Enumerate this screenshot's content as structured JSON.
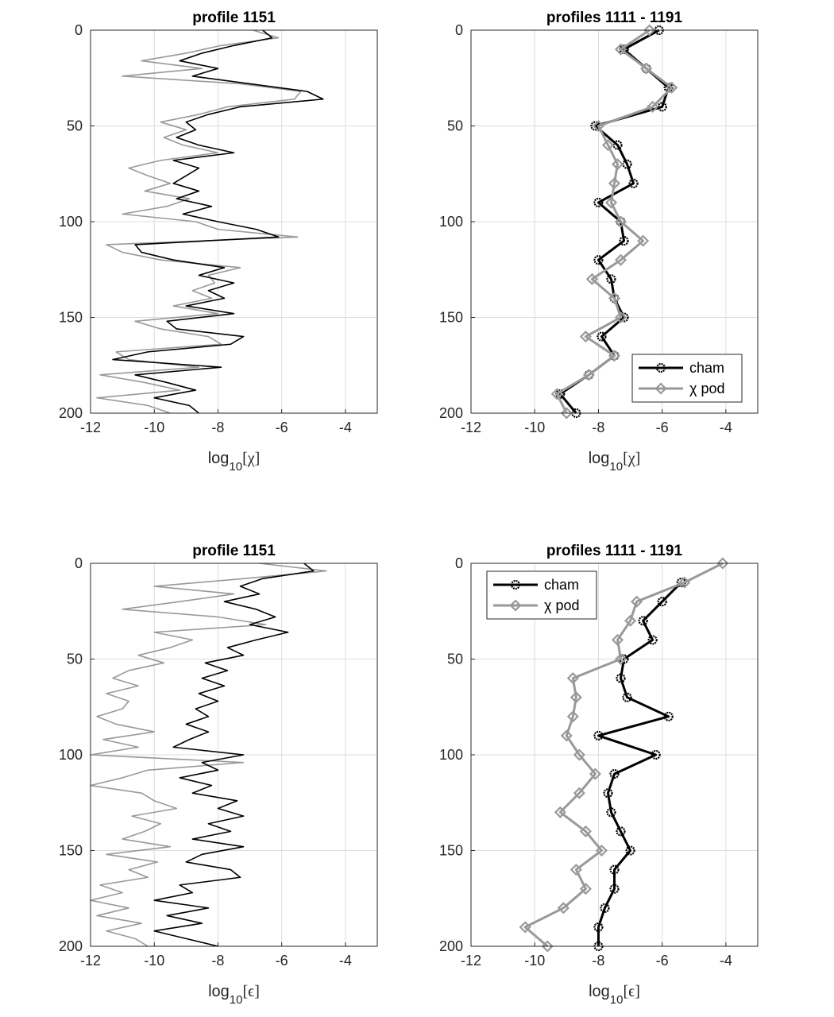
{
  "chart_data": [
    {
      "type": "line",
      "title": "profile 1151",
      "xlabel": [
        "log",
        "10",
        "[χ]"
      ],
      "y": [
        0,
        4,
        8,
        12,
        16,
        20,
        24,
        28,
        32,
        36,
        40,
        44,
        48,
        52,
        56,
        60,
        64,
        68,
        72,
        76,
        80,
        84,
        88,
        92,
        96,
        100,
        104,
        108,
        112,
        116,
        120,
        124,
        128,
        132,
        136,
        140,
        144,
        148,
        152,
        156,
        160,
        164,
        168,
        172,
        176,
        180,
        184,
        188,
        192,
        196,
        200
      ],
      "series": [
        {
          "color": "#999999",
          "values": [
            -6.9,
            -6.1,
            -7.9,
            -9.0,
            -10.4,
            -8.5,
            -11.0,
            -7.3,
            -5.4,
            -5.6,
            -7.7,
            -8.6,
            -9.8,
            -9.0,
            -9.7,
            -9.1,
            -8.0,
            -9.8,
            -10.8,
            -10.2,
            -9.5,
            -10.3,
            -8.9,
            -9.6,
            -11.0,
            -8.7,
            -8.0,
            -5.5,
            -11.5,
            -11.0,
            -9.8,
            -7.3,
            -8.3,
            -8.1,
            -8.8,
            -8.2,
            -9.4,
            -8.0,
            -10.6,
            -9.8,
            -8.3,
            -7.9,
            -11.2,
            -10.8,
            -8.6,
            -11.7,
            -10.3,
            -9.2,
            -11.8,
            -10.2,
            -9.5
          ]
        },
        {
          "color": "#000000",
          "values": [
            -6.6,
            -6.3,
            -7.5,
            -8.5,
            -9.2,
            -8.0,
            -8.8,
            -7.0,
            -5.2,
            -4.7,
            -7.3,
            -8.3,
            -9.0,
            -8.7,
            -9.3,
            -8.6,
            -7.5,
            -9.4,
            -8.6,
            -9.0,
            -9.4,
            -8.6,
            -9.3,
            -8.2,
            -9.1,
            -8.0,
            -6.8,
            -6.1,
            -10.6,
            -10.4,
            -9.4,
            -7.8,
            -8.6,
            -7.5,
            -8.3,
            -7.8,
            -9.0,
            -7.5,
            -9.6,
            -9.3,
            -7.2,
            -7.6,
            -10.2,
            -11.3,
            -7.9,
            -10.6,
            -9.6,
            -8.7,
            -10.0,
            -8.9,
            -8.6
          ]
        }
      ],
      "xlim": [
        -12,
        -3
      ],
      "xticks": [
        -12,
        -10,
        -8,
        -6,
        -4
      ],
      "ylim": [
        0,
        200
      ],
      "yticks": [
        0,
        50,
        100,
        150,
        200
      ],
      "y_reversed": true,
      "grid": true
    },
    {
      "type": "line",
      "title": "profiles 1111 - 1191",
      "xlabel": [
        "log",
        "10",
        "[χ]"
      ],
      "y": [
        0,
        10,
        20,
        30,
        40,
        50,
        60,
        70,
        80,
        90,
        100,
        110,
        120,
        130,
        140,
        150,
        160,
        170,
        180,
        190,
        200
      ],
      "series": [
        {
          "name": "cham",
          "color": "#000000",
          "marker": "circle",
          "values": [
            -6.1,
            -7.2,
            -6.5,
            -5.8,
            -6.0,
            -8.1,
            -7.4,
            -7.1,
            -6.9,
            -8.0,
            -7.3,
            -7.2,
            -8.0,
            -7.6,
            -7.5,
            -7.2,
            -7.9,
            -7.5,
            -8.3,
            -9.2,
            -8.7
          ]
        },
        {
          "name": "χ pod",
          "color": "#999999",
          "marker": "diamond",
          "values": [
            -6.4,
            -7.3,
            -6.5,
            -5.7,
            -6.3,
            -8.0,
            -7.7,
            -7.4,
            -7.5,
            -7.6,
            -7.3,
            -6.6,
            -7.3,
            -8.2,
            -7.5,
            -7.3,
            -8.4,
            -7.5,
            -8.3,
            -9.3,
            -9.0
          ]
        }
      ],
      "legend": "lower-right",
      "xlim": [
        -12,
        -3
      ],
      "xticks": [
        -12,
        -10,
        -8,
        -6,
        -4
      ],
      "ylim": [
        0,
        200
      ],
      "yticks": [
        0,
        50,
        100,
        150,
        200
      ],
      "y_reversed": true,
      "grid": true
    },
    {
      "type": "line",
      "title": "profile 1151",
      "xlabel": [
        "log",
        "10",
        "[ϵ]"
      ],
      "y": [
        0,
        4,
        8,
        12,
        16,
        20,
        24,
        28,
        32,
        36,
        40,
        44,
        48,
        52,
        56,
        60,
        64,
        68,
        72,
        76,
        80,
        84,
        88,
        92,
        96,
        100,
        104,
        108,
        112,
        116,
        120,
        124,
        128,
        132,
        136,
        140,
        144,
        148,
        152,
        156,
        160,
        164,
        168,
        172,
        176,
        180,
        184,
        188,
        192,
        196,
        200
      ],
      "series": [
        {
          "color": "#999999",
          "values": [
            -6.7,
            -4.6,
            -7.2,
            -10.0,
            -7.5,
            -9.2,
            -11.0,
            -8.0,
            -6.5,
            -10.0,
            -8.8,
            -9.5,
            -10.5,
            -9.7,
            -10.8,
            -11.3,
            -10.5,
            -11.5,
            -10.8,
            -11.0,
            -11.8,
            -11.2,
            -10.0,
            -11.6,
            -10.5,
            -12.0,
            -7.2,
            -10.2,
            -11.0,
            -12.0,
            -10.4,
            -10.0,
            -9.3,
            -10.7,
            -9.8,
            -10.3,
            -11.0,
            -9.5,
            -11.5,
            -9.9,
            -10.8,
            -10.2,
            -11.7,
            -11.0,
            -12.0,
            -10.8,
            -11.8,
            -10.4,
            -11.5,
            -10.6,
            -10.2
          ]
        },
        {
          "color": "#000000",
          "values": [
            -5.3,
            -5.0,
            -6.6,
            -7.3,
            -6.7,
            -7.8,
            -6.8,
            -6.2,
            -7.0,
            -5.8,
            -6.8,
            -7.7,
            -7.2,
            -8.4,
            -7.7,
            -8.5,
            -7.8,
            -8.6,
            -8.0,
            -8.7,
            -8.3,
            -9.0,
            -8.3,
            -8.9,
            -9.4,
            -7.2,
            -8.5,
            -8.0,
            -9.2,
            -8.2,
            -8.8,
            -7.4,
            -8.0,
            -7.2,
            -8.3,
            -7.6,
            -8.8,
            -7.2,
            -8.5,
            -9.0,
            -7.6,
            -7.3,
            -9.2,
            -8.8,
            -10.0,
            -8.3,
            -9.6,
            -8.5,
            -10.0,
            -9.0,
            -8.0
          ]
        }
      ],
      "xlim": [
        -12,
        -3
      ],
      "xticks": [
        -12,
        -10,
        -8,
        -6,
        -4
      ],
      "ylim": [
        0,
        200
      ],
      "yticks": [
        0,
        50,
        100,
        150,
        200
      ],
      "y_reversed": true,
      "grid": true
    },
    {
      "type": "line",
      "title": "profiles 1111 - 1191",
      "xlabel": [
        "log",
        "10",
        "[ϵ]"
      ],
      "y": [
        0,
        10,
        20,
        30,
        40,
        50,
        60,
        70,
        80,
        90,
        100,
        110,
        120,
        130,
        140,
        150,
        160,
        170,
        180,
        190,
        200
      ],
      "series": [
        {
          "name": "cham",
          "color": "#000000",
          "marker": "circle",
          "values": [
            null,
            -5.4,
            -6.0,
            -6.6,
            -6.3,
            -7.2,
            -7.3,
            -7.1,
            -5.8,
            -8.0,
            -6.2,
            -7.5,
            -7.7,
            -7.6,
            -7.3,
            -7.0,
            -7.5,
            -7.5,
            -7.8,
            -8.0,
            -8.0
          ]
        },
        {
          "name": "χ pod",
          "color": "#999999",
          "marker": "diamond",
          "values": [
            -4.1,
            -5.3,
            -6.8,
            -7.0,
            -7.4,
            -7.3,
            -8.8,
            -8.7,
            -8.8,
            -9.0,
            -8.6,
            -8.1,
            -8.6,
            -9.2,
            -8.4,
            -7.9,
            -8.7,
            -8.4,
            -9.1,
            -10.3,
            -9.6
          ]
        }
      ],
      "legend": "upper-left",
      "xlim": [
        -12,
        -3
      ],
      "xticks": [
        -12,
        -10,
        -8,
        -6,
        -4
      ],
      "ylim": [
        0,
        200
      ],
      "yticks": [
        0,
        50,
        100,
        150,
        200
      ],
      "y_reversed": true,
      "grid": true
    }
  ]
}
